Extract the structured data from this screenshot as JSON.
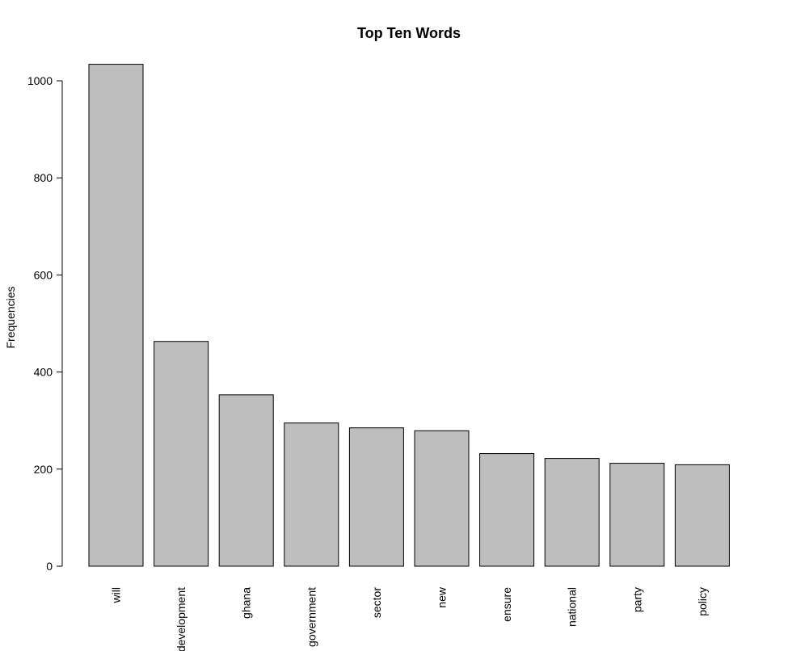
{
  "chart_data": {
    "type": "bar",
    "title": "Top Ten Words",
    "xlabel": "",
    "ylabel": "Frequencies",
    "categories": [
      "will",
      "development",
      "ghana",
      "government",
      "sector",
      "new",
      "ensure",
      "national",
      "party",
      "policy"
    ],
    "values": [
      1034,
      463,
      353,
      295,
      285,
      279,
      232,
      222,
      212,
      209
    ],
    "ylim": [
      0,
      1040
    ],
    "yticks": [
      0,
      200,
      400,
      600,
      800,
      1000
    ],
    "colors": {
      "bar_fill": "#bebebe",
      "bar_stroke": "#000000"
    }
  }
}
